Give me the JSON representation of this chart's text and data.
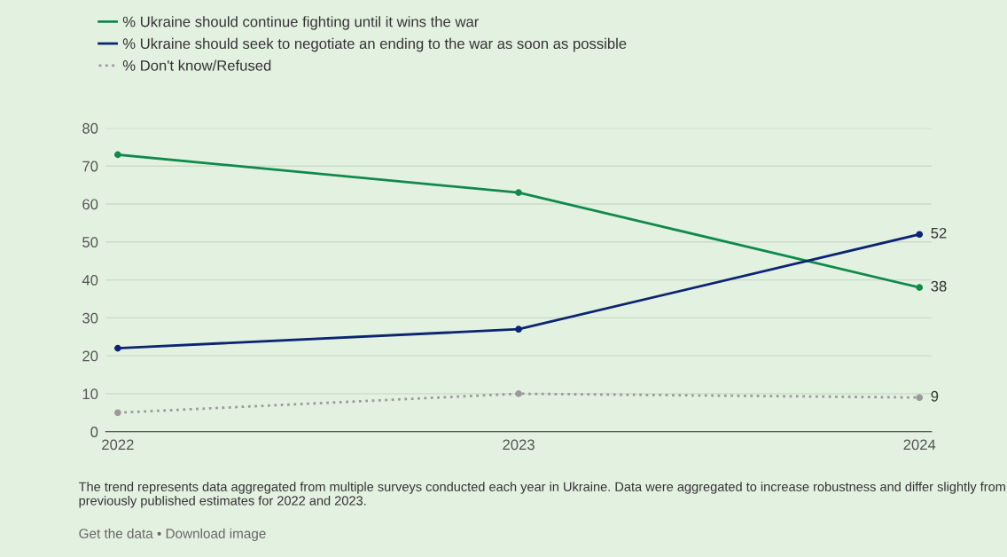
{
  "chart_data": {
    "type": "line",
    "x": [
      2022,
      2023,
      2024
    ],
    "xlim": [
      2021.97,
      2024.03
    ],
    "xticks": [
      2022,
      2023,
      2024
    ],
    "ylim": [
      0,
      80
    ],
    "yticks": [
      0,
      10,
      20,
      30,
      40,
      50,
      60,
      70,
      80
    ],
    "grid": "y",
    "legend": "top left",
    "marker": "circle",
    "series": [
      {
        "name": "% Ukraine should continue fighting until it wins the war",
        "color": "#0f8a4a",
        "values": [
          73,
          63,
          38
        ],
        "line_style": "solid",
        "value_labels": [
          null,
          null,
          "38"
        ]
      },
      {
        "name": "% Ukraine should seek to negotiate an ending to the war as soon as possible",
        "color": "#0b2473",
        "values": [
          22,
          27,
          52
        ],
        "line_style": "solid",
        "value_labels": [
          null,
          null,
          "52"
        ]
      },
      {
        "name": "% Don't know/Refused",
        "color": "#9a9a9a",
        "values": [
          5,
          10,
          9
        ],
        "line_style": "dotted",
        "value_labels": [
          null,
          null,
          "9"
        ]
      }
    ],
    "annotations": [
      "The trend represents data aggregated from multiple surveys conducted each year in Ukraine. Data were aggregated to increase robustness and differ slightly from previously published estimates for 2022 and 2023.",
      "Get the data • Download image"
    ]
  }
}
